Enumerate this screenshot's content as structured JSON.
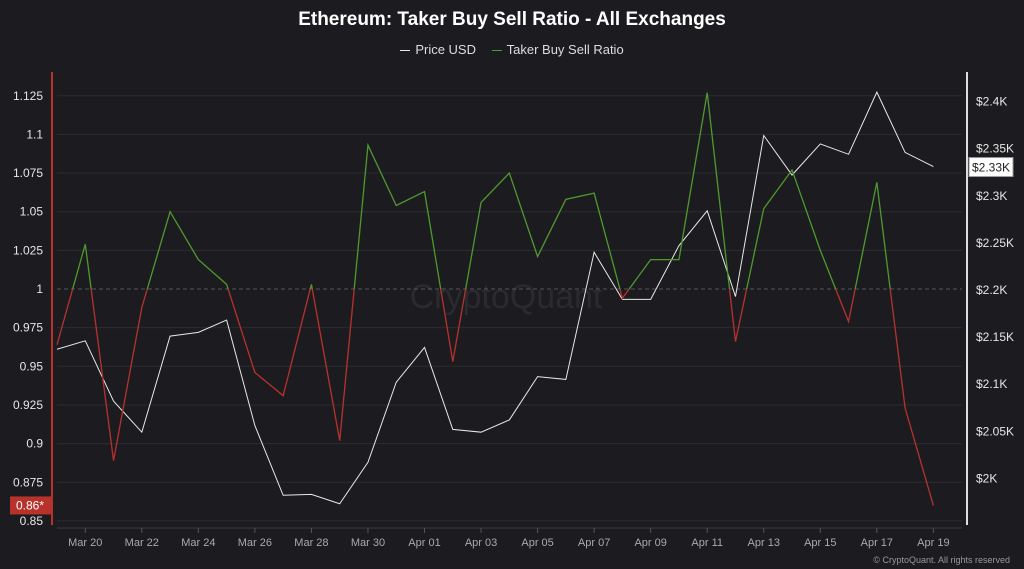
{
  "chart_data": {
    "type": "line",
    "title": "Ethereum: Taker Buy Sell Ratio - All Exchanges",
    "x": [
      "Mar 19",
      "Mar 20",
      "Mar 21",
      "Mar 22",
      "Mar 23",
      "Mar 24",
      "Mar 25",
      "Mar 26",
      "Mar 27",
      "Mar 28",
      "Mar 29",
      "Mar 30",
      "Mar 31",
      "Apr 01",
      "Apr 02",
      "Apr 03",
      "Apr 04",
      "Apr 05",
      "Apr 06",
      "Apr 07",
      "Apr 08",
      "Apr 09",
      "Apr 10",
      "Apr 11",
      "Apr 12",
      "Apr 13",
      "Apr 14",
      "Apr 15",
      "Apr 16",
      "Apr 17",
      "Apr 18",
      "Apr 19"
    ],
    "x_tick_labels": [
      "Mar 20",
      "Mar 22",
      "Mar 24",
      "Mar 26",
      "Mar 28",
      "Mar 30",
      "Apr 01",
      "Apr 03",
      "Apr 05",
      "Apr 07",
      "Apr 09",
      "Apr 11",
      "Apr 13",
      "Apr 15",
      "Apr 17",
      "Apr 19"
    ],
    "series": [
      {
        "name": "Price USD",
        "axis": "right",
        "color": "#e8e8e8",
        "values": [
          2136,
          2145,
          2081,
          2048,
          2150,
          2154,
          2167,
          2055,
          1981,
          1982,
          1972,
          2016,
          2101,
          2138,
          2051,
          2048,
          2061,
          2107,
          2104,
          2239,
          2189,
          2189,
          2246,
          2283,
          2192,
          2363,
          2321,
          2354,
          2343,
          2409,
          2345,
          2330
        ]
      },
      {
        "name": "Taker Buy Sell Ratio",
        "axis": "left",
        "color_above": "#4e9a2e",
        "color_below": "#b8322c",
        "values": [
          0.964,
          1.029,
          0.889,
          0.988,
          1.05,
          1.019,
          1.003,
          0.946,
          0.931,
          1.003,
          0.902,
          1.093,
          1.054,
          1.063,
          0.953,
          1.056,
          1.075,
          1.021,
          1.058,
          1.062,
          0.994,
          1.019,
          1.019,
          1.127,
          0.966,
          1.052,
          1.077,
          1.025,
          0.979,
          1.069,
          0.923,
          0.86
        ]
      }
    ],
    "left_axis": {
      "ylim": [
        0.85,
        1.14
      ],
      "ticks": [
        "1.125",
        "1.1",
        "1.075",
        "1.05",
        "1.025",
        "1",
        "0.975",
        "0.95",
        "0.925",
        "0.9",
        "0.875",
        "0.85"
      ],
      "tick_values": [
        1.125,
        1.1,
        1.075,
        1.05,
        1.025,
        1,
        0.975,
        0.95,
        0.925,
        0.9,
        0.875,
        0.85
      ],
      "current_label": "0.86*",
      "reference_line": 1
    },
    "right_axis": {
      "ylim": [
        1970,
        2430
      ],
      "ticks": [
        "$2.4K",
        "$2.35K",
        "$2.3K",
        "$2.25K",
        "$2.2K",
        "$2.15K",
        "$2.1K",
        "$2.05K",
        "$2K"
      ],
      "tick_values": [
        2400,
        2350,
        2300,
        2250,
        2200,
        2150,
        2100,
        2050,
        2000
      ],
      "current_label": "$2.33K"
    },
    "grid": true,
    "legend_placement": "top-center",
    "watermark": "CryptoQuant"
  },
  "footer": "© CryptoQuant. All rights reserved"
}
